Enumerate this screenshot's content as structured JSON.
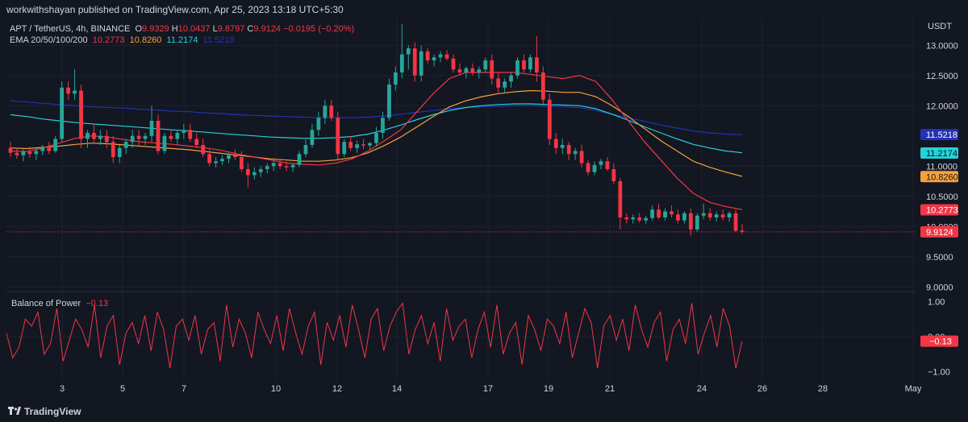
{
  "publisher_line": "workwithshayan published on TradingView.com, Apr 25, 2023 13:18 UTC+5:30",
  "legend": {
    "symbol": "APT / TetherUS, 4h, BINANCE",
    "o_label": "O",
    "o_value": "9.9329",
    "h_label": "H",
    "h_value": "10.0437",
    "l_label": "L",
    "l_value": "9.8797",
    "c_label": "C",
    "c_value": "9.9124",
    "change": "−0.0195 (−0.20%)",
    "ema_label": "EMA 20/50/100/200",
    "ema20": "10.2773",
    "ema50": "10.8260",
    "ema100": "11.2174",
    "ema200": "11.5218"
  },
  "bop_legend": {
    "label": "Balance of Power",
    "value": "−0.13"
  },
  "footer_brand": "TradingView",
  "colors": {
    "background": "#131722",
    "up": "#26a69a",
    "down": "#f23645",
    "ema20": "#f23645",
    "ema50": "#f7a13b",
    "ema100": "#22d3d9",
    "ema200": "#2432b6",
    "bop_line": "#f23645",
    "grid": "#1e222d",
    "axis_text": "#d1d4dc"
  },
  "chart_data": [
    {
      "type": "candlestick",
      "title": "APT / TetherUS, 4h, BINANCE",
      "currency_label": "USDT",
      "y_axis_ticks": [
        "13.0000",
        "12.5000",
        "12.0000",
        "11.0000",
        "10.5000",
        "10.0000",
        "9.5000",
        "9.0000"
      ],
      "ylim": [
        8.95,
        13.35
      ],
      "grid": true,
      "x_axis_ticks": [
        "3",
        "5",
        "7",
        "10",
        "12",
        "14",
        "17",
        "19",
        "21",
        "24",
        "26",
        "28",
        "May"
      ],
      "last_price": 9.9124,
      "price_labels": [
        {
          "text": "11.5218",
          "value": 11.5218,
          "series": "EMA 200"
        },
        {
          "text": "11.2174",
          "value": 11.2174,
          "series": "EMA 100"
        },
        {
          "text": "10.8260",
          "value": 10.826,
          "series": "EMA 50"
        },
        {
          "text": "10.2773",
          "value": 10.2773,
          "series": "EMA 20"
        },
        {
          "text": "9.9124",
          "value": 9.9124,
          "series": "last price"
        }
      ],
      "candles": [
        {
          "o": 11.3,
          "h": 11.4,
          "l": 11.15,
          "c": 11.22
        },
        {
          "o": 11.22,
          "h": 11.3,
          "l": 11.12,
          "c": 11.18
        },
        {
          "o": 11.18,
          "h": 11.28,
          "l": 11.08,
          "c": 11.24
        },
        {
          "o": 11.24,
          "h": 11.32,
          "l": 11.14,
          "c": 11.2
        },
        {
          "o": 11.2,
          "h": 11.3,
          "l": 11.1,
          "c": 11.25
        },
        {
          "o": 11.25,
          "h": 11.35,
          "l": 11.18,
          "c": 11.3
        },
        {
          "o": 11.3,
          "h": 11.4,
          "l": 11.2,
          "c": 11.25
        },
        {
          "o": 11.25,
          "h": 11.5,
          "l": 11.22,
          "c": 11.45
        },
        {
          "o": 11.45,
          "h": 12.4,
          "l": 11.4,
          "c": 12.3
        },
        {
          "o": 12.3,
          "h": 12.4,
          "l": 12.1,
          "c": 12.2
        },
        {
          "o": 12.2,
          "h": 12.6,
          "l": 12.1,
          "c": 12.25
        },
        {
          "o": 12.25,
          "h": 12.35,
          "l": 11.3,
          "c": 11.45
        },
        {
          "o": 11.45,
          "h": 11.6,
          "l": 11.3,
          "c": 11.55
        },
        {
          "o": 11.55,
          "h": 11.7,
          "l": 11.4,
          "c": 11.45
        },
        {
          "o": 11.45,
          "h": 11.6,
          "l": 11.35,
          "c": 11.5
        },
        {
          "o": 11.5,
          "h": 11.6,
          "l": 11.3,
          "c": 11.4
        },
        {
          "o": 11.4,
          "h": 11.5,
          "l": 11.05,
          "c": 11.15
        },
        {
          "o": 11.15,
          "h": 11.35,
          "l": 11.05,
          "c": 11.3
        },
        {
          "o": 11.3,
          "h": 11.45,
          "l": 11.2,
          "c": 11.4
        },
        {
          "o": 11.4,
          "h": 11.6,
          "l": 11.3,
          "c": 11.5
        },
        {
          "o": 11.5,
          "h": 11.6,
          "l": 11.35,
          "c": 11.45
        },
        {
          "o": 11.45,
          "h": 11.55,
          "l": 11.35,
          "c": 11.5
        },
        {
          "o": 11.5,
          "h": 12.0,
          "l": 11.4,
          "c": 11.75
        },
        {
          "o": 11.75,
          "h": 11.85,
          "l": 11.2,
          "c": 11.25
        },
        {
          "o": 11.25,
          "h": 11.55,
          "l": 11.2,
          "c": 11.5
        },
        {
          "o": 11.5,
          "h": 11.6,
          "l": 11.4,
          "c": 11.45
        },
        {
          "o": 11.45,
          "h": 11.6,
          "l": 11.35,
          "c": 11.55
        },
        {
          "o": 11.55,
          "h": 11.7,
          "l": 11.45,
          "c": 11.6
        },
        {
          "o": 11.6,
          "h": 11.7,
          "l": 11.4,
          "c": 11.45
        },
        {
          "o": 11.45,
          "h": 11.55,
          "l": 11.3,
          "c": 11.35
        },
        {
          "o": 11.35,
          "h": 11.45,
          "l": 11.15,
          "c": 11.2
        },
        {
          "o": 11.2,
          "h": 11.3,
          "l": 11.0,
          "c": 11.05
        },
        {
          "o": 11.05,
          "h": 11.15,
          "l": 10.98,
          "c": 11.08
        },
        {
          "o": 11.08,
          "h": 11.18,
          "l": 11.02,
          "c": 11.12
        },
        {
          "o": 11.12,
          "h": 11.22,
          "l": 11.05,
          "c": 11.18
        },
        {
          "o": 11.18,
          "h": 11.28,
          "l": 11.1,
          "c": 11.15
        },
        {
          "o": 11.15,
          "h": 11.25,
          "l": 10.9,
          "c": 10.95
        },
        {
          "o": 10.95,
          "h": 11.05,
          "l": 10.65,
          "c": 10.85
        },
        {
          "o": 10.85,
          "h": 10.98,
          "l": 10.78,
          "c": 10.9
        },
        {
          "o": 10.9,
          "h": 11.0,
          "l": 10.82,
          "c": 10.95
        },
        {
          "o": 10.95,
          "h": 11.05,
          "l": 10.88,
          "c": 11.0
        },
        {
          "o": 11.0,
          "h": 11.1,
          "l": 10.92,
          "c": 11.05
        },
        {
          "o": 11.05,
          "h": 11.12,
          "l": 10.95,
          "c": 11.0
        },
        {
          "o": 11.0,
          "h": 11.08,
          "l": 10.92,
          "c": 10.98
        },
        {
          "o": 10.98,
          "h": 11.05,
          "l": 10.9,
          "c": 11.02
        },
        {
          "o": 11.02,
          "h": 11.25,
          "l": 10.98,
          "c": 11.2
        },
        {
          "o": 11.2,
          "h": 11.45,
          "l": 11.15,
          "c": 11.35
        },
        {
          "o": 11.35,
          "h": 11.7,
          "l": 11.3,
          "c": 11.6
        },
        {
          "o": 11.6,
          "h": 11.9,
          "l": 11.5,
          "c": 11.8
        },
        {
          "o": 11.8,
          "h": 12.1,
          "l": 11.7,
          "c": 12.0
        },
        {
          "o": 12.0,
          "h": 12.1,
          "l": 11.75,
          "c": 11.8
        },
        {
          "o": 11.8,
          "h": 11.9,
          "l": 11.1,
          "c": 11.2
        },
        {
          "o": 11.2,
          "h": 11.45,
          "l": 11.15,
          "c": 11.4
        },
        {
          "o": 11.4,
          "h": 11.5,
          "l": 11.25,
          "c": 11.3
        },
        {
          "o": 11.3,
          "h": 11.42,
          "l": 11.22,
          "c": 11.36
        },
        {
          "o": 11.36,
          "h": 11.45,
          "l": 11.28,
          "c": 11.34
        },
        {
          "o": 11.34,
          "h": 11.4,
          "l": 11.28,
          "c": 11.38
        },
        {
          "o": 11.38,
          "h": 11.65,
          "l": 11.32,
          "c": 11.55
        },
        {
          "o": 11.55,
          "h": 11.9,
          "l": 11.45,
          "c": 11.8
        },
        {
          "o": 11.8,
          "h": 12.45,
          "l": 11.75,
          "c": 12.35
        },
        {
          "o": 12.35,
          "h": 12.65,
          "l": 12.25,
          "c": 12.55
        },
        {
          "o": 12.55,
          "h": 13.35,
          "l": 12.45,
          "c": 12.85
        },
        {
          "o": 12.85,
          "h": 13.0,
          "l": 12.6,
          "c": 12.95
        },
        {
          "o": 12.95,
          "h": 13.05,
          "l": 12.4,
          "c": 12.5
        },
        {
          "o": 12.5,
          "h": 13.0,
          "l": 12.4,
          "c": 12.9
        },
        {
          "o": 12.9,
          "h": 12.95,
          "l": 12.7,
          "c": 12.75
        },
        {
          "o": 12.75,
          "h": 12.85,
          "l": 12.65,
          "c": 12.8
        },
        {
          "o": 12.8,
          "h": 12.9,
          "l": 12.72,
          "c": 12.85
        },
        {
          "o": 12.85,
          "h": 12.92,
          "l": 12.75,
          "c": 12.78
        },
        {
          "o": 12.78,
          "h": 12.85,
          "l": 12.55,
          "c": 12.6
        },
        {
          "o": 12.6,
          "h": 12.7,
          "l": 12.5,
          "c": 12.55
        },
        {
          "o": 12.55,
          "h": 12.65,
          "l": 12.45,
          "c": 12.62
        },
        {
          "o": 12.62,
          "h": 12.7,
          "l": 12.5,
          "c": 12.55
        },
        {
          "o": 12.55,
          "h": 12.65,
          "l": 12.45,
          "c": 12.6
        },
        {
          "o": 12.6,
          "h": 12.8,
          "l": 12.55,
          "c": 12.75
        },
        {
          "o": 12.75,
          "h": 12.85,
          "l": 12.35,
          "c": 12.45
        },
        {
          "o": 12.45,
          "h": 12.55,
          "l": 12.2,
          "c": 12.3
        },
        {
          "o": 12.3,
          "h": 12.45,
          "l": 12.22,
          "c": 12.4
        },
        {
          "o": 12.4,
          "h": 12.55,
          "l": 12.3,
          "c": 12.5
        },
        {
          "o": 12.5,
          "h": 12.8,
          "l": 12.45,
          "c": 12.75
        },
        {
          "o": 12.75,
          "h": 12.85,
          "l": 12.55,
          "c": 12.6
        },
        {
          "o": 12.6,
          "h": 12.85,
          "l": 12.55,
          "c": 12.8
        },
        {
          "o": 12.8,
          "h": 13.15,
          "l": 12.4,
          "c": 12.55
        },
        {
          "o": 12.55,
          "h": 12.65,
          "l": 12.0,
          "c": 12.1
        },
        {
          "o": 12.1,
          "h": 12.2,
          "l": 11.35,
          "c": 11.45
        },
        {
          "o": 11.45,
          "h": 11.55,
          "l": 11.2,
          "c": 11.3
        },
        {
          "o": 11.3,
          "h": 11.45,
          "l": 11.2,
          "c": 11.35
        },
        {
          "o": 11.35,
          "h": 11.4,
          "l": 11.1,
          "c": 11.2
        },
        {
          "o": 11.2,
          "h": 11.3,
          "l": 11.1,
          "c": 11.25
        },
        {
          "o": 11.25,
          "h": 11.35,
          "l": 10.98,
          "c": 11.05
        },
        {
          "o": 11.05,
          "h": 11.1,
          "l": 10.85,
          "c": 10.9
        },
        {
          "o": 10.9,
          "h": 11.08,
          "l": 10.85,
          "c": 11.02
        },
        {
          "o": 11.02,
          "h": 11.12,
          "l": 10.95,
          "c": 11.08
        },
        {
          "o": 11.08,
          "h": 11.15,
          "l": 10.92,
          "c": 10.95
        },
        {
          "o": 10.95,
          "h": 11.05,
          "l": 10.7,
          "c": 10.75
        },
        {
          "o": 10.75,
          "h": 10.8,
          "l": 9.95,
          "c": 10.15
        },
        {
          "o": 10.15,
          "h": 10.22,
          "l": 10.05,
          "c": 10.12
        },
        {
          "o": 10.12,
          "h": 10.2,
          "l": 10.05,
          "c": 10.15
        },
        {
          "o": 10.15,
          "h": 10.22,
          "l": 10.06,
          "c": 10.1
        },
        {
          "o": 10.1,
          "h": 10.18,
          "l": 10.04,
          "c": 10.14
        },
        {
          "o": 10.14,
          "h": 10.35,
          "l": 10.1,
          "c": 10.28
        },
        {
          "o": 10.28,
          "h": 10.38,
          "l": 10.12,
          "c": 10.15
        },
        {
          "o": 10.15,
          "h": 10.3,
          "l": 10.1,
          "c": 10.25
        },
        {
          "o": 10.25,
          "h": 10.35,
          "l": 10.15,
          "c": 10.2
        },
        {
          "o": 10.2,
          "h": 10.28,
          "l": 10.05,
          "c": 10.1
        },
        {
          "o": 10.1,
          "h": 10.25,
          "l": 10.05,
          "c": 10.22
        },
        {
          "o": 10.22,
          "h": 10.3,
          "l": 9.85,
          "c": 9.95
        },
        {
          "o": 9.95,
          "h": 10.22,
          "l": 9.92,
          "c": 10.18
        },
        {
          "o": 10.18,
          "h": 10.38,
          "l": 10.12,
          "c": 10.22
        },
        {
          "o": 10.22,
          "h": 10.3,
          "l": 10.1,
          "c": 10.15
        },
        {
          "o": 10.15,
          "h": 10.25,
          "l": 10.08,
          "c": 10.2
        },
        {
          "o": 10.2,
          "h": 10.28,
          "l": 10.1,
          "c": 10.15
        },
        {
          "o": 10.15,
          "h": 10.25,
          "l": 10.08,
          "c": 10.22
        },
        {
          "o": 10.22,
          "h": 10.28,
          "l": 9.9,
          "c": 9.93
        },
        {
          "o": 9.9329,
          "h": 10.0437,
          "l": 9.8797,
          "c": 9.9124
        }
      ],
      "ema20": [
        11.25,
        11.24,
        11.3,
        11.38,
        11.46,
        11.5,
        11.48,
        11.44,
        11.4,
        11.38,
        11.36,
        11.33,
        11.3,
        11.26,
        11.2,
        11.15,
        11.1,
        11.05,
        11.03,
        11.02,
        11.05,
        11.12,
        11.25,
        11.42,
        11.6,
        11.9,
        12.2,
        12.45,
        12.55,
        12.55,
        12.55,
        12.55,
        12.52,
        12.48,
        12.45,
        12.5,
        12.4,
        12.1,
        11.75,
        11.4,
        11.1,
        10.8,
        10.55,
        10.4,
        10.33,
        10.28
      ],
      "ema50": [
        11.3,
        11.29,
        11.31,
        11.33,
        11.36,
        11.38,
        11.37,
        11.35,
        11.33,
        11.31,
        11.29,
        11.27,
        11.24,
        11.21,
        11.18,
        11.15,
        11.12,
        11.1,
        11.08,
        11.08,
        11.1,
        11.14,
        11.22,
        11.34,
        11.48,
        11.65,
        11.82,
        11.98,
        12.08,
        12.15,
        12.2,
        12.23,
        12.25,
        12.24,
        12.22,
        12.22,
        12.15,
        12.0,
        11.82,
        11.62,
        11.42,
        11.25,
        11.08,
        10.98,
        10.9,
        10.83
      ],
      "ema100": [
        11.85,
        11.82,
        11.78,
        11.75,
        11.72,
        11.7,
        11.68,
        11.66,
        11.64,
        11.62,
        11.6,
        11.58,
        11.56,
        11.54,
        11.52,
        11.5,
        11.48,
        11.47,
        11.46,
        11.46,
        11.47,
        11.49,
        11.53,
        11.6,
        11.68,
        11.77,
        11.85,
        11.92,
        11.97,
        12.0,
        12.02,
        12.03,
        12.03,
        12.02,
        12.01,
        12.0,
        11.95,
        11.86,
        11.76,
        11.65,
        11.55,
        11.45,
        11.36,
        11.3,
        11.25,
        11.22
      ],
      "ema200": [
        12.08,
        12.06,
        12.04,
        12.02,
        12.0,
        11.98,
        11.97,
        11.96,
        11.94,
        11.93,
        11.91,
        11.9,
        11.88,
        11.87,
        11.85,
        11.84,
        11.83,
        11.82,
        11.81,
        11.8,
        11.8,
        11.8,
        11.81,
        11.83,
        11.86,
        11.89,
        11.92,
        11.95,
        11.97,
        11.98,
        11.99,
        12.0,
        12.0,
        11.99,
        11.98,
        11.97,
        11.92,
        11.86,
        11.8,
        11.74,
        11.68,
        11.63,
        11.58,
        11.55,
        11.53,
        11.52
      ]
    },
    {
      "type": "line",
      "title": "Balance of Power",
      "y_axis_ticks": [
        "1.00",
        "0.00",
        "−1.00"
      ],
      "ylim": [
        -1.1,
        1.1
      ],
      "last_value_label": "−0.13",
      "values": [
        0.1,
        -0.6,
        -0.3,
        0.5,
        0.3,
        0.7,
        -0.5,
        -0.2,
        0.8,
        -0.7,
        -0.1,
        0.5,
        0.2,
        -0.3,
        0.9,
        -0.6,
        0.3,
        0.6,
        -0.8,
        0.1,
        0.4,
        -0.2,
        0.6,
        -0.4,
        0.7,
        0.2,
        -0.9,
        0.3,
        0.5,
        -0.1,
        0.6,
        -0.5,
        0.2,
        0.4,
        -0.7,
        0.9,
        -0.3,
        0.5,
        0.1,
        -0.6,
        0.7,
        0.2,
        -0.2,
        0.6,
        -0.4,
        0.8,
        0.1,
        -0.5,
        0.3,
        0.7,
        -0.8,
        0.4,
        -0.1,
        0.6,
        -0.3,
        0.9,
        0.2,
        -0.6,
        0.5,
        0.8,
        -0.4,
        0.3,
        0.7,
        0.95,
        -0.5,
        0.2,
        0.6,
        -0.2,
        0.4,
        -0.7,
        0.8,
        -0.1,
        0.3,
        0.5,
        -0.6,
        0.2,
        0.7,
        -0.3,
        0.9,
        -0.5,
        0.1,
        0.4,
        -0.8,
        0.6,
        0.2,
        -0.4,
        0.5,
        0.3,
        -0.2,
        0.7,
        -0.6,
        0.1,
        0.8,
        0.4,
        -0.9,
        0.3,
        0.6,
        -0.1,
        0.5,
        -0.4,
        0.9,
        0.2,
        -0.3,
        0.4,
        0.7,
        -0.7,
        0.2,
        0.5,
        -0.2,
        0.95,
        -0.5,
        0.1,
        0.6,
        -0.3,
        0.8,
        0.3,
        -0.9,
        -0.13
      ]
    }
  ]
}
